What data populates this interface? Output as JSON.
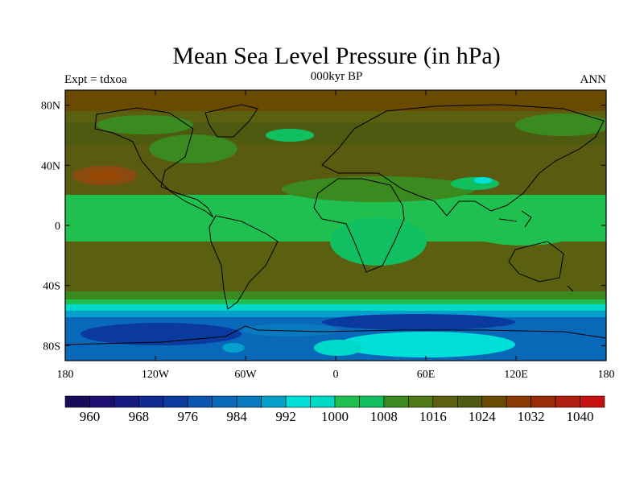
{
  "title": "Mean Sea Level Pressure (in hPa)",
  "subtitle_left": "Expt = tdxoa",
  "subtitle_center": "000kyr BP",
  "subtitle_right": "ANN",
  "map": {
    "lat_ticks": [
      {
        "value": 80,
        "label": "80N"
      },
      {
        "value": 40,
        "label": "40N"
      },
      {
        "value": 0,
        "label": "0"
      },
      {
        "value": -40,
        "label": "40S"
      },
      {
        "value": -80,
        "label": "80S"
      }
    ],
    "lon_ticks": [
      {
        "value": -180,
        "label": "180"
      },
      {
        "value": -120,
        "label": "120W"
      },
      {
        "value": -60,
        "label": "60W"
      },
      {
        "value": 0,
        "label": "0"
      },
      {
        "value": 60,
        "label": "60E"
      },
      {
        "value": 120,
        "label": "120E"
      },
      {
        "value": 180,
        "label": "180"
      }
    ],
    "lat_range": [
      -90,
      90
    ],
    "lon_range": [
      -180,
      180
    ]
  },
  "colorbar": {
    "colors": [
      "#1a0a5a",
      "#1c0f70",
      "#141a80",
      "#0f2a90",
      "#0a3aa0",
      "#0c55b0",
      "#0a68b8",
      "#0878c0",
      "#05a0cc",
      "#00e0d8",
      "#00d8c8",
      "#20c050",
      "#10c060",
      "#3a8a20",
      "#4f7818",
      "#5a6010",
      "#4e5a10",
      "#6a4a00",
      "#8a3a00",
      "#9a2a08",
      "#b02010",
      "#c81010"
    ],
    "labels": [
      "960",
      "968",
      "976",
      "984",
      "992",
      "1000",
      "1008",
      "1016",
      "1024",
      "1032",
      "1040"
    ]
  }
}
